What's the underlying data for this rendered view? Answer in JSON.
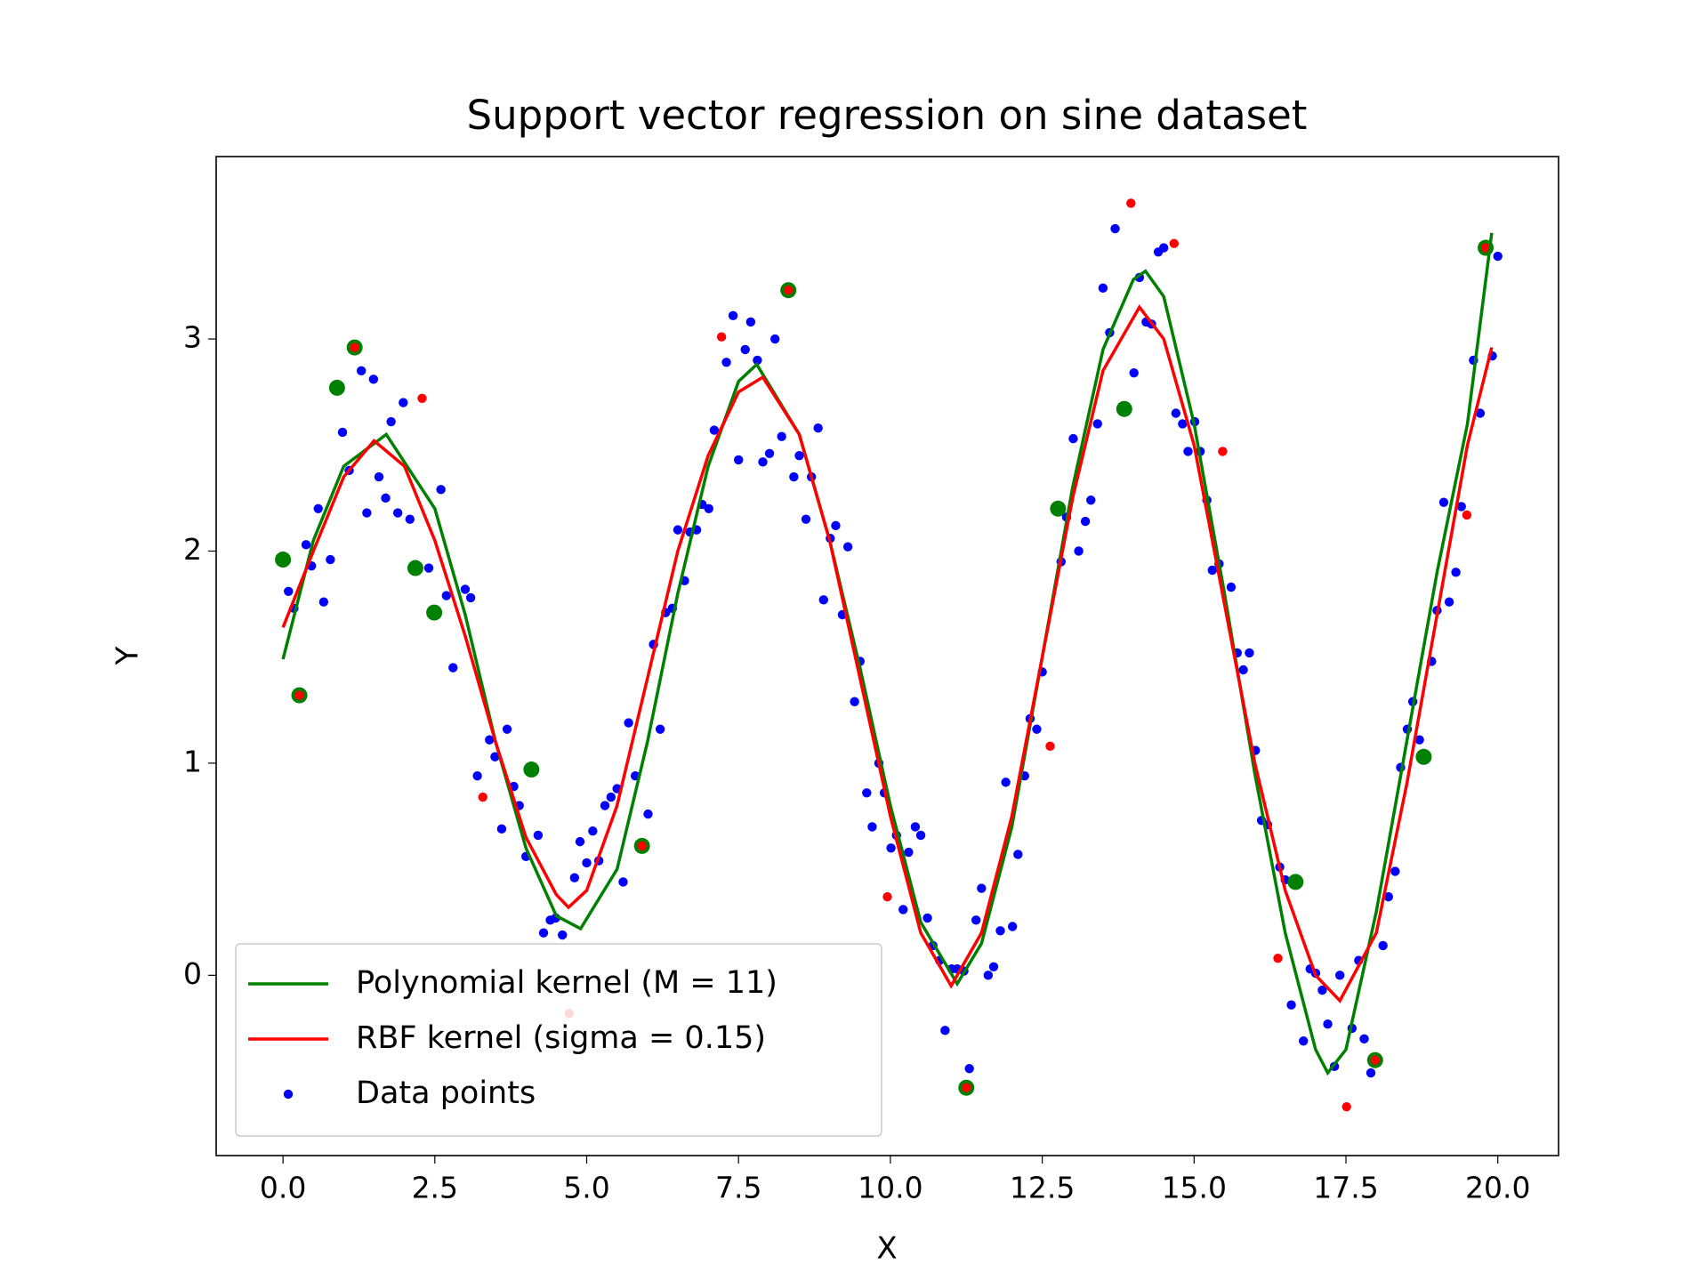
{
  "chart_data": {
    "type": "line",
    "title": "Support vector regression on sine dataset",
    "xlabel": "X",
    "ylabel": "Y",
    "xlim": [
      -1.1,
      21.0
    ],
    "ylim": [
      -0.85,
      3.86
    ],
    "xticks": [
      {
        "value": 0,
        "label": "0.0"
      },
      {
        "value": 2.5,
        "label": "2.5"
      },
      {
        "value": 5,
        "label": "5.0"
      },
      {
        "value": 7.5,
        "label": "7.5"
      },
      {
        "value": 10,
        "label": "10.0"
      },
      {
        "value": 12.5,
        "label": "12.5"
      },
      {
        "value": 15,
        "label": "15.0"
      },
      {
        "value": 17.5,
        "label": "17.5"
      },
      {
        "value": 20,
        "label": "20.0"
      }
    ],
    "yticks": [
      0,
      1,
      2,
      3
    ],
    "grid": false,
    "legend": "lower left",
    "series": [
      {
        "name": "Polynomial kernel (M = 11)",
        "type": "line",
        "color": "#008000",
        "x": [
          0,
          0.5,
          1,
          1.7,
          2.5,
          3,
          3.5,
          4,
          4.5,
          4.9,
          5.5,
          6,
          6.5,
          7,
          7.5,
          7.8,
          8.5,
          9,
          9.5,
          10,
          10.5,
          11.1,
          11.5,
          12,
          12.5,
          13,
          13.5,
          14,
          14.2,
          14.5,
          15,
          15.5,
          16,
          16.5,
          17,
          17.2,
          17.5,
          18,
          18.5,
          19,
          19.5,
          19.9
        ],
        "values": [
          1.49,
          2.05,
          2.4,
          2.55,
          2.2,
          1.7,
          1.1,
          0.6,
          0.28,
          0.22,
          0.5,
          1.1,
          1.8,
          2.4,
          2.8,
          2.88,
          2.55,
          2.05,
          1.45,
          0.8,
          0.25,
          -0.04,
          0.15,
          0.7,
          1.5,
          2.3,
          2.95,
          3.28,
          3.32,
          3.2,
          2.6,
          1.8,
          0.95,
          0.2,
          -0.35,
          -0.46,
          -0.35,
          0.3,
          1.1,
          1.9,
          2.6,
          3.5
        ]
      },
      {
        "name": "RBF kernel (sigma = 0.15)",
        "type": "line",
        "color": "#ff0000",
        "x": [
          0,
          0.5,
          1,
          1.5,
          2,
          2.5,
          3,
          3.5,
          4,
          4.5,
          4.7,
          5,
          5.5,
          6,
          6.5,
          7,
          7.5,
          7.9,
          8.5,
          9,
          9.5,
          10,
          10.5,
          11,
          11.5,
          12,
          12.5,
          13,
          13.5,
          14.1,
          14.5,
          15,
          15.5,
          16,
          16.5,
          17,
          17.4,
          18,
          18.5,
          19,
          19.5,
          19.9
        ],
        "values": [
          1.64,
          2.0,
          2.35,
          2.52,
          2.4,
          2.05,
          1.6,
          1.1,
          0.65,
          0.38,
          0.32,
          0.4,
          0.8,
          1.4,
          2.0,
          2.45,
          2.75,
          2.82,
          2.55,
          2.05,
          1.4,
          0.75,
          0.2,
          -0.05,
          0.2,
          0.75,
          1.5,
          2.25,
          2.85,
          3.15,
          3.0,
          2.5,
          1.75,
          1.0,
          0.4,
          0.0,
          -0.12,
          0.2,
          0.9,
          1.7,
          2.5,
          2.96
        ]
      },
      {
        "name": "Data points",
        "type": "scatter",
        "color": "#0000ff",
        "x": [
          0.09,
          0.18,
          0.38,
          0.47,
          0.58,
          0.67,
          0.78,
          0.98,
          1.09,
          1.29,
          1.38,
          1.49,
          1.58,
          1.69,
          1.78,
          1.89,
          1.98,
          2.09,
          2.4,
          2.6,
          2.69,
          2.8,
          3.0,
          3.09,
          3.2,
          3.4,
          3.49,
          3.6,
          3.69,
          3.8,
          3.89,
          4.0,
          4.2,
          4.29,
          4.4,
          4.49,
          4.6,
          4.8,
          4.89,
          5.0,
          5.1,
          5.2,
          5.3,
          5.4,
          5.5,
          5.6,
          5.69,
          5.8,
          6.01,
          6.1,
          6.21,
          6.3,
          6.41,
          6.5,
          6.61,
          6.7,
          6.81,
          6.9,
          7.01,
          7.1,
          7.3,
          7.41,
          7.5,
          7.61,
          7.7,
          7.81,
          7.9,
          8.01,
          8.1,
          8.21,
          8.41,
          8.5,
          8.61,
          8.7,
          8.81,
          8.9,
          9.01,
          9.1,
          9.21,
          9.3,
          9.41,
          9.5,
          9.61,
          9.7,
          9.81,
          9.9,
          10.01,
          10.1,
          10.21,
          10.3,
          10.41,
          10.5,
          10.61,
          10.7,
          10.81,
          10.9,
          11.01,
          11.1,
          11.21,
          11.3,
          11.41,
          11.5,
          11.61,
          11.7,
          11.81,
          11.9,
          12.01,
          12.1,
          12.21,
          12.3,
          12.41,
          12.5,
          12.81,
          12.9,
          13.01,
          13.1,
          13.21,
          13.3,
          13.41,
          13.5,
          13.61,
          13.7,
          14.01,
          14.1,
          14.21,
          14.3,
          14.41,
          14.5,
          14.7,
          14.81,
          14.9,
          15.01,
          15.1,
          15.21,
          15.3,
          15.41,
          15.61,
          15.71,
          15.81,
          15.91,
          16.01,
          16.11,
          16.21,
          16.41,
          16.5,
          16.6,
          16.8,
          16.91,
          17.0,
          17.11,
          17.2,
          17.31,
          17.4,
          17.6,
          17.71,
          17.8,
          17.91,
          18.11,
          18.2,
          18.31,
          18.4,
          18.51,
          18.6,
          18.71,
          18.91,
          19.0,
          19.11,
          19.2,
          19.31,
          19.4,
          19.6,
          19.71,
          19.91,
          20.0
        ],
        "values": [
          1.81,
          1.73,
          2.03,
          1.93,
          2.2,
          1.76,
          1.96,
          2.56,
          2.38,
          2.85,
          2.18,
          2.81,
          2.35,
          2.25,
          2.61,
          2.18,
          2.7,
          2.15,
          1.92,
          2.29,
          1.79,
          1.45,
          1.82,
          1.78,
          0.94,
          1.11,
          1.03,
          0.69,
          1.16,
          0.89,
          0.8,
          0.56,
          0.66,
          0.2,
          0.26,
          0.27,
          0.19,
          0.46,
          0.63,
          0.53,
          0.68,
          0.54,
          0.8,
          0.84,
          0.88,
          0.44,
          1.19,
          0.94,
          0.76,
          1.56,
          1.16,
          1.71,
          1.73,
          2.1,
          1.86,
          2.09,
          2.1,
          2.22,
          2.2,
          2.57,
          2.89,
          3.11,
          2.43,
          2.95,
          3.08,
          2.9,
          2.42,
          2.46,
          3.0,
          2.54,
          2.35,
          2.45,
          2.15,
          2.35,
          2.58,
          1.77,
          2.06,
          2.12,
          1.7,
          2.02,
          1.29,
          1.48,
          0.86,
          0.7,
          1.0,
          0.86,
          0.6,
          0.66,
          0.31,
          0.58,
          0.7,
          0.66,
          0.27,
          0.14,
          0.07,
          -0.26,
          0.03,
          0.03,
          0.02,
          -0.44,
          0.26,
          0.41,
          0.0,
          0.04,
          0.21,
          0.91,
          0.23,
          0.57,
          0.94,
          1.21,
          1.16,
          1.43,
          1.95,
          2.16,
          2.53,
          2.0,
          2.14,
          2.24,
          2.6,
          3.24,
          3.03,
          3.52,
          2.84,
          3.29,
          3.08,
          3.07,
          3.41,
          3.43,
          2.65,
          2.6,
          2.47,
          2.61,
          2.47,
          2.24,
          1.91,
          1.94,
          1.83,
          1.52,
          1.44,
          1.52,
          1.06,
          0.73,
          0.71,
          0.51,
          0.45,
          -0.14,
          -0.31,
          0.03,
          0.01,
          -0.07,
          -0.23,
          -0.43,
          0.0,
          -0.25,
          0.07,
          -0.3,
          -0.46,
          0.14,
          0.37,
          0.49,
          0.98,
          1.16,
          1.29,
          1.11,
          1.48,
          1.72,
          2.23,
          1.76,
          1.9,
          2.21,
          2.9,
          2.65,
          2.92,
          3.39
        ]
      },
      {
        "type": "scatter",
        "color": "#008000",
        "size": "large",
        "x": [
          0,
          0.89,
          2.18,
          2.49,
          4.09,
          12.76,
          13.85,
          16.67,
          18.78,
          0.27,
          1.18,
          5.91,
          8.32,
          11.25,
          17.98,
          19.8
        ],
        "values": [
          1.96,
          2.77,
          1.92,
          1.71,
          0.97,
          2.2,
          2.67,
          0.44,
          1.03,
          1.32,
          2.96,
          0.61,
          3.23,
          -0.53,
          -0.4,
          3.43
        ]
      },
      {
        "type": "scatter",
        "color": "#ff0000",
        "x": [
          2.29,
          3.29,
          4.71,
          7.22,
          9.95,
          12.63,
          13.96,
          14.67,
          15.47,
          16.38,
          17.51,
          19.49,
          0.27,
          1.18,
          5.91,
          8.32,
          11.25,
          17.98,
          19.8
        ],
        "values": [
          2.72,
          0.84,
          -0.18,
          3.01,
          0.37,
          1.08,
          3.64,
          3.45,
          2.47,
          0.08,
          -0.62,
          2.17,
          1.32,
          2.96,
          0.61,
          3.23,
          -0.53,
          -0.4,
          3.43
        ]
      }
    ]
  }
}
